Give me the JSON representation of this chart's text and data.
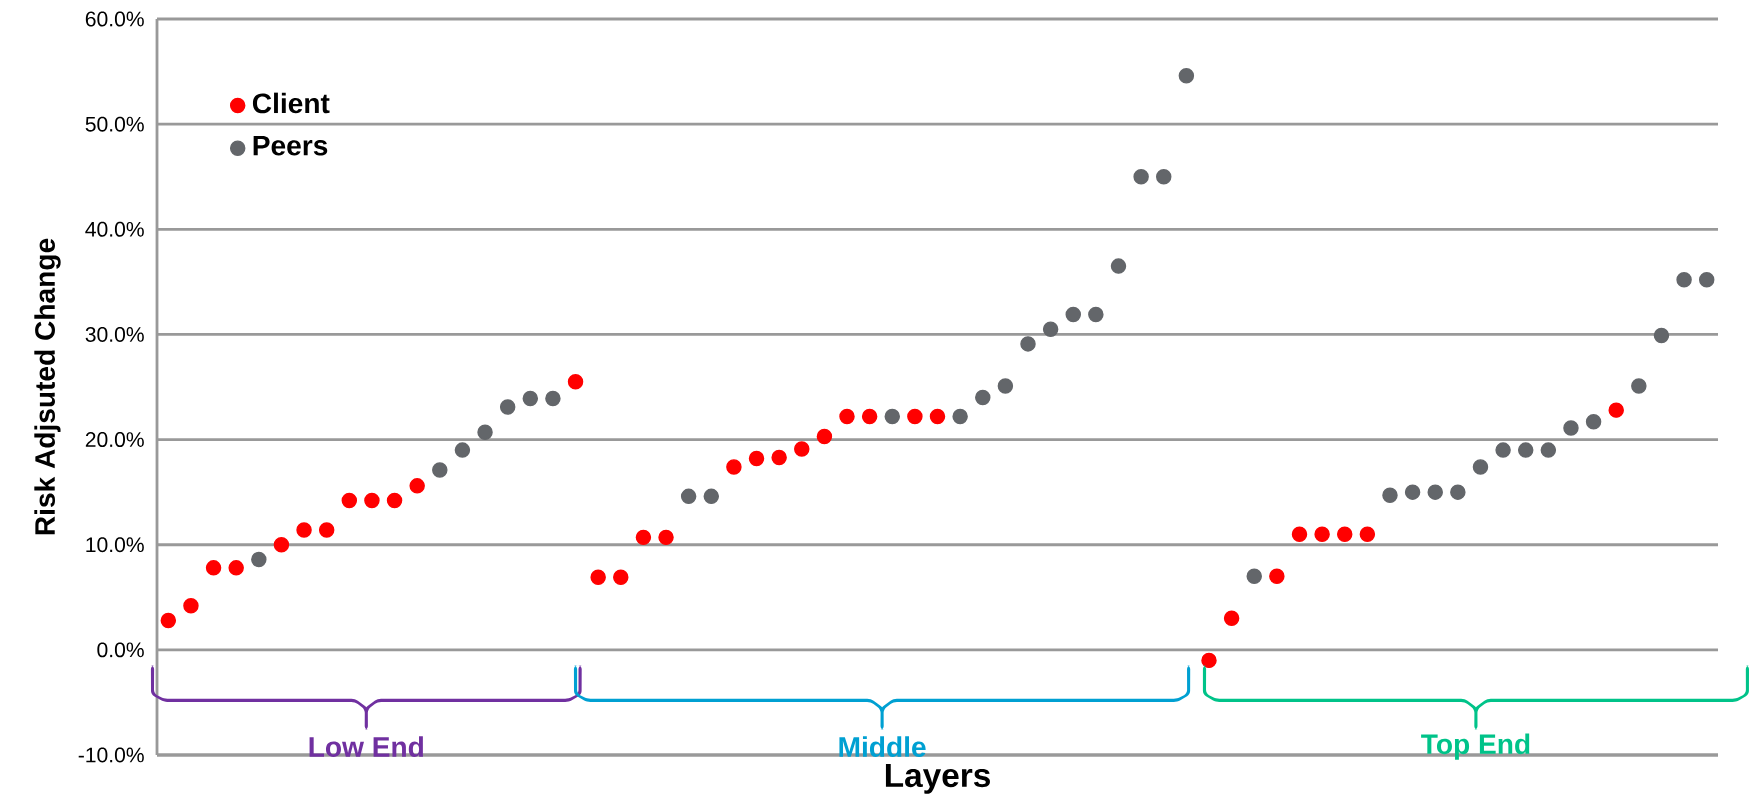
{
  "chart_data": {
    "type": "scatter",
    "xlabel": "Layers",
    "ylabel": "Risk Adjsuted Change",
    "categories": [
      null,
      null,
      null,
      null,
      null,
      null,
      null,
      null,
      null,
      null,
      null,
      null,
      null,
      null,
      null,
      null,
      null,
      null,
      null,
      null,
      null,
      null,
      null,
      null,
      null,
      null,
      null,
      null,
      null,
      null,
      null,
      null,
      null,
      null,
      null,
      null,
      null,
      null,
      null,
      null,
      null,
      null,
      null,
      null,
      null,
      null,
      null,
      null,
      null,
      null,
      null,
      null,
      null,
      null,
      null,
      null,
      null,
      null,
      null,
      null,
      null,
      null,
      null,
      null,
      null,
      null,
      null,
      null,
      null
    ],
    "series": [
      {
        "name": "Client",
        "color": "#ff0000",
        "values": [
          2.8,
          4.2,
          7.8,
          7.8,
          null,
          10.0,
          11.4,
          11.4,
          14.2,
          14.2,
          14.2,
          15.6,
          null,
          null,
          null,
          null,
          null,
          null,
          25.5,
          6.9,
          6.9,
          10.7,
          10.7,
          null,
          null,
          17.4,
          18.2,
          18.3,
          19.1,
          20.3,
          22.2,
          22.2,
          null,
          22.2,
          22.2,
          null,
          null,
          null,
          null,
          null,
          null,
          null,
          null,
          null,
          null,
          null,
          -1.0,
          3.0,
          null,
          7.0,
          11.0,
          11.0,
          11.0,
          11.0,
          null,
          null,
          null,
          null,
          null,
          null,
          null,
          null,
          null,
          null,
          22.8,
          null,
          null,
          null,
          null
        ]
      },
      {
        "name": "Peers",
        "color": "#63666a",
        "values": [
          null,
          null,
          null,
          null,
          8.6,
          null,
          null,
          null,
          null,
          null,
          null,
          null,
          17.1,
          19.0,
          20.7,
          23.1,
          23.9,
          23.9,
          null,
          null,
          null,
          null,
          null,
          14.6,
          14.6,
          null,
          null,
          null,
          null,
          null,
          null,
          null,
          22.2,
          null,
          null,
          22.2,
          24.0,
          25.1,
          29.1,
          30.5,
          31.9,
          31.9,
          36.5,
          45.0,
          45.0,
          54.6,
          null,
          null,
          7.0,
          null,
          null,
          null,
          null,
          null,
          14.7,
          15.0,
          15.0,
          15.0,
          17.4,
          19.0,
          19.0,
          19.0,
          21.1,
          21.7,
          null,
          25.1,
          29.9,
          35.2,
          35.2
        ]
      }
    ],
    "ylim": [
      -10,
      60
    ],
    "yticks": [
      {
        "value": -10,
        "label": "-10.0%"
      },
      {
        "value": 0,
        "label": "0.0%"
      },
      {
        "value": 10,
        "label": "10.0%"
      },
      {
        "value": 20,
        "label": "20.0%"
      },
      {
        "value": 30,
        "label": "30.0%"
      },
      {
        "value": 40,
        "label": "40.0%"
      },
      {
        "value": 50,
        "label": "50.0%"
      },
      {
        "value": 60,
        "label": "60.0%"
      }
    ],
    "annotations": [
      "Low End",
      "Middle",
      "Top End"
    ],
    "grid": "y",
    "legend": "top left",
    "marker": "circle",
    "tick_labels": "y"
  }
}
